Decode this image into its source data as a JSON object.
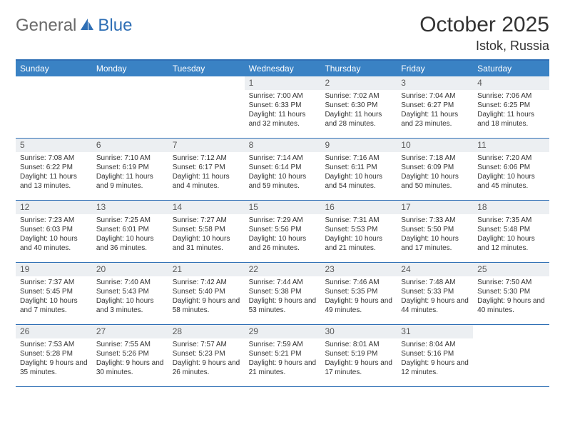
{
  "logo": {
    "general": "General",
    "blue": "Blue"
  },
  "title": "October 2025",
  "location": "Istok, Russia",
  "weekdays": [
    "Sunday",
    "Monday",
    "Tuesday",
    "Wednesday",
    "Thursday",
    "Friday",
    "Saturday"
  ],
  "colors": {
    "header_bar": "#3a82c4",
    "border": "#2f6fb5",
    "daynum_bg": "#eceff2",
    "text": "#333333",
    "logo_gray": "#6a6a6a",
    "logo_blue": "#2f6fb5",
    "background": "#ffffff"
  },
  "weeks": [
    [
      {
        "n": "",
        "sr": "",
        "ss": "",
        "dl": ""
      },
      {
        "n": "",
        "sr": "",
        "ss": "",
        "dl": ""
      },
      {
        "n": "",
        "sr": "",
        "ss": "",
        "dl": ""
      },
      {
        "n": "1",
        "sr": "Sunrise: 7:00 AM",
        "ss": "Sunset: 6:33 PM",
        "dl": "Daylight: 11 hours and 32 minutes."
      },
      {
        "n": "2",
        "sr": "Sunrise: 7:02 AM",
        "ss": "Sunset: 6:30 PM",
        "dl": "Daylight: 11 hours and 28 minutes."
      },
      {
        "n": "3",
        "sr": "Sunrise: 7:04 AM",
        "ss": "Sunset: 6:27 PM",
        "dl": "Daylight: 11 hours and 23 minutes."
      },
      {
        "n": "4",
        "sr": "Sunrise: 7:06 AM",
        "ss": "Sunset: 6:25 PM",
        "dl": "Daylight: 11 hours and 18 minutes."
      }
    ],
    [
      {
        "n": "5",
        "sr": "Sunrise: 7:08 AM",
        "ss": "Sunset: 6:22 PM",
        "dl": "Daylight: 11 hours and 13 minutes."
      },
      {
        "n": "6",
        "sr": "Sunrise: 7:10 AM",
        "ss": "Sunset: 6:19 PM",
        "dl": "Daylight: 11 hours and 9 minutes."
      },
      {
        "n": "7",
        "sr": "Sunrise: 7:12 AM",
        "ss": "Sunset: 6:17 PM",
        "dl": "Daylight: 11 hours and 4 minutes."
      },
      {
        "n": "8",
        "sr": "Sunrise: 7:14 AM",
        "ss": "Sunset: 6:14 PM",
        "dl": "Daylight: 10 hours and 59 minutes."
      },
      {
        "n": "9",
        "sr": "Sunrise: 7:16 AM",
        "ss": "Sunset: 6:11 PM",
        "dl": "Daylight: 10 hours and 54 minutes."
      },
      {
        "n": "10",
        "sr": "Sunrise: 7:18 AM",
        "ss": "Sunset: 6:09 PM",
        "dl": "Daylight: 10 hours and 50 minutes."
      },
      {
        "n": "11",
        "sr": "Sunrise: 7:20 AM",
        "ss": "Sunset: 6:06 PM",
        "dl": "Daylight: 10 hours and 45 minutes."
      }
    ],
    [
      {
        "n": "12",
        "sr": "Sunrise: 7:23 AM",
        "ss": "Sunset: 6:03 PM",
        "dl": "Daylight: 10 hours and 40 minutes."
      },
      {
        "n": "13",
        "sr": "Sunrise: 7:25 AM",
        "ss": "Sunset: 6:01 PM",
        "dl": "Daylight: 10 hours and 36 minutes."
      },
      {
        "n": "14",
        "sr": "Sunrise: 7:27 AM",
        "ss": "Sunset: 5:58 PM",
        "dl": "Daylight: 10 hours and 31 minutes."
      },
      {
        "n": "15",
        "sr": "Sunrise: 7:29 AM",
        "ss": "Sunset: 5:56 PM",
        "dl": "Daylight: 10 hours and 26 minutes."
      },
      {
        "n": "16",
        "sr": "Sunrise: 7:31 AM",
        "ss": "Sunset: 5:53 PM",
        "dl": "Daylight: 10 hours and 21 minutes."
      },
      {
        "n": "17",
        "sr": "Sunrise: 7:33 AM",
        "ss": "Sunset: 5:50 PM",
        "dl": "Daylight: 10 hours and 17 minutes."
      },
      {
        "n": "18",
        "sr": "Sunrise: 7:35 AM",
        "ss": "Sunset: 5:48 PM",
        "dl": "Daylight: 10 hours and 12 minutes."
      }
    ],
    [
      {
        "n": "19",
        "sr": "Sunrise: 7:37 AM",
        "ss": "Sunset: 5:45 PM",
        "dl": "Daylight: 10 hours and 7 minutes."
      },
      {
        "n": "20",
        "sr": "Sunrise: 7:40 AM",
        "ss": "Sunset: 5:43 PM",
        "dl": "Daylight: 10 hours and 3 minutes."
      },
      {
        "n": "21",
        "sr": "Sunrise: 7:42 AM",
        "ss": "Sunset: 5:40 PM",
        "dl": "Daylight: 9 hours and 58 minutes."
      },
      {
        "n": "22",
        "sr": "Sunrise: 7:44 AM",
        "ss": "Sunset: 5:38 PM",
        "dl": "Daylight: 9 hours and 53 minutes."
      },
      {
        "n": "23",
        "sr": "Sunrise: 7:46 AM",
        "ss": "Sunset: 5:35 PM",
        "dl": "Daylight: 9 hours and 49 minutes."
      },
      {
        "n": "24",
        "sr": "Sunrise: 7:48 AM",
        "ss": "Sunset: 5:33 PM",
        "dl": "Daylight: 9 hours and 44 minutes."
      },
      {
        "n": "25",
        "sr": "Sunrise: 7:50 AM",
        "ss": "Sunset: 5:30 PM",
        "dl": "Daylight: 9 hours and 40 minutes."
      }
    ],
    [
      {
        "n": "26",
        "sr": "Sunrise: 7:53 AM",
        "ss": "Sunset: 5:28 PM",
        "dl": "Daylight: 9 hours and 35 minutes."
      },
      {
        "n": "27",
        "sr": "Sunrise: 7:55 AM",
        "ss": "Sunset: 5:26 PM",
        "dl": "Daylight: 9 hours and 30 minutes."
      },
      {
        "n": "28",
        "sr": "Sunrise: 7:57 AM",
        "ss": "Sunset: 5:23 PM",
        "dl": "Daylight: 9 hours and 26 minutes."
      },
      {
        "n": "29",
        "sr": "Sunrise: 7:59 AM",
        "ss": "Sunset: 5:21 PM",
        "dl": "Daylight: 9 hours and 21 minutes."
      },
      {
        "n": "30",
        "sr": "Sunrise: 8:01 AM",
        "ss": "Sunset: 5:19 PM",
        "dl": "Daylight: 9 hours and 17 minutes."
      },
      {
        "n": "31",
        "sr": "Sunrise: 8:04 AM",
        "ss": "Sunset: 5:16 PM",
        "dl": "Daylight: 9 hours and 12 minutes."
      },
      {
        "n": "",
        "sr": "",
        "ss": "",
        "dl": ""
      }
    ]
  ]
}
